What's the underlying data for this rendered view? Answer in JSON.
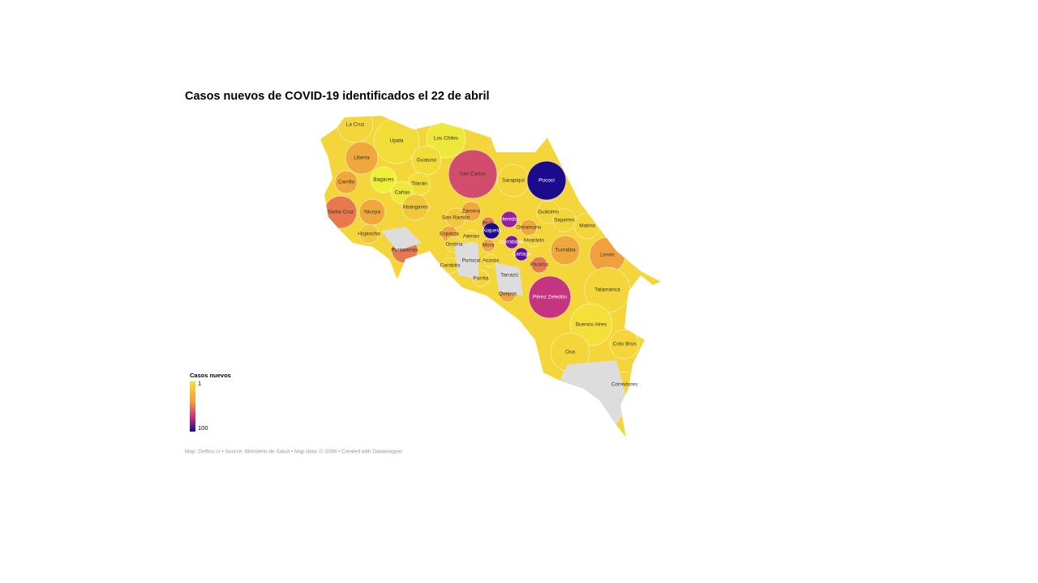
{
  "header": {
    "title": "Casos nuevos de COVID-19 identificados el 22 de abril"
  },
  "regions": [
    {
      "name": "La Cruz",
      "color": "#f5d63a"
    },
    {
      "name": "Upala",
      "color": "#f2dc38"
    },
    {
      "name": "Los Chiles",
      "color": "#eee83a"
    },
    {
      "name": "Liberia",
      "color": "#f0a83c"
    },
    {
      "name": "Guatuso",
      "color": "#f2dc38"
    },
    {
      "name": "San Carlos",
      "color": "#d24d6c"
    },
    {
      "name": "Sarapiquí",
      "color": "#f5d63a"
    },
    {
      "name": "Pococí",
      "color": "#1c0a8c"
    },
    {
      "name": "Bagaces",
      "color": "#eef03a"
    },
    {
      "name": "Carrillo",
      "color": "#f0a83c"
    },
    {
      "name": "Tilarán",
      "color": "#f2dc38"
    },
    {
      "name": "Cañas",
      "color": "#eee83a"
    },
    {
      "name": "Abangares",
      "color": "#f2c83a"
    },
    {
      "name": "Santa Cruz",
      "color": "#e8794f"
    },
    {
      "name": "Nicoya",
      "color": "#f0a83c"
    },
    {
      "name": "Zarcero",
      "color": "#f0a83c"
    },
    {
      "name": "Guácimo",
      "color": "#f5d63a"
    },
    {
      "name": "San Ramón",
      "color": "#f2c83a"
    },
    {
      "name": "Heredia",
      "color": "#9a1fa0"
    },
    {
      "name": "Siquirres",
      "color": "#f5d63a"
    },
    {
      "name": "Poás",
      "color": "#e8794f"
    },
    {
      "name": "Matina",
      "color": "#f5d63a"
    },
    {
      "name": "Oreamuno",
      "color": "#f0a83c"
    },
    {
      "name": "Alajuela",
      "color": "#1c0a8c"
    },
    {
      "name": "Hojancha",
      "color": "#f2c83a"
    },
    {
      "name": "Esparza",
      "color": "#f0a83c"
    },
    {
      "name": "Atenas",
      "color": "#f5d63a"
    },
    {
      "name": "Alvarado",
      "color": "#f5d63a"
    },
    {
      "name": "Curridabat",
      "color": "#7a1aa0"
    },
    {
      "name": "Orotina",
      "color": "#f5d63a"
    },
    {
      "name": "Mora",
      "color": "#f0a83c"
    },
    {
      "name": "Puntarenas",
      "color": "#e8794f"
    },
    {
      "name": "Turrialba",
      "color": "#f0a83c"
    },
    {
      "name": "Cartago",
      "color": "#5a0fa0"
    },
    {
      "name": "Limón",
      "color": "#f0a03c"
    },
    {
      "name": "Puriscal",
      "color": "#f5d63a"
    },
    {
      "name": "Acosta",
      "color": "#f5d63a"
    },
    {
      "name": "Garabito",
      "color": "#f5d63a"
    },
    {
      "name": "Paraíso",
      "color": "#e8794f"
    },
    {
      "name": "Tarrazú",
      "color": "#f5d63a"
    },
    {
      "name": "Parrita",
      "color": "#f5d63a"
    },
    {
      "name": "Talamanca",
      "color": "#f5d63a"
    },
    {
      "name": "Quepos",
      "color": "#f0a83c"
    },
    {
      "name": "Pérez Zeledón",
      "color": "#c5347e"
    },
    {
      "name": "Buenos Aires",
      "color": "#f5e03a"
    },
    {
      "name": "Coto Brus",
      "color": "#f5d63a"
    },
    {
      "name": "Osa",
      "color": "#f5d63a"
    },
    {
      "name": "Corredores",
      "color": "#f5d63a"
    }
  ],
  "legend": {
    "title": "Casos nuevos",
    "min": 1,
    "max": 100
  },
  "footer": "Map: Delfino.cr • Source: Ministerio de Salud • Map data: © OSM • Created with Datawrapper"
}
